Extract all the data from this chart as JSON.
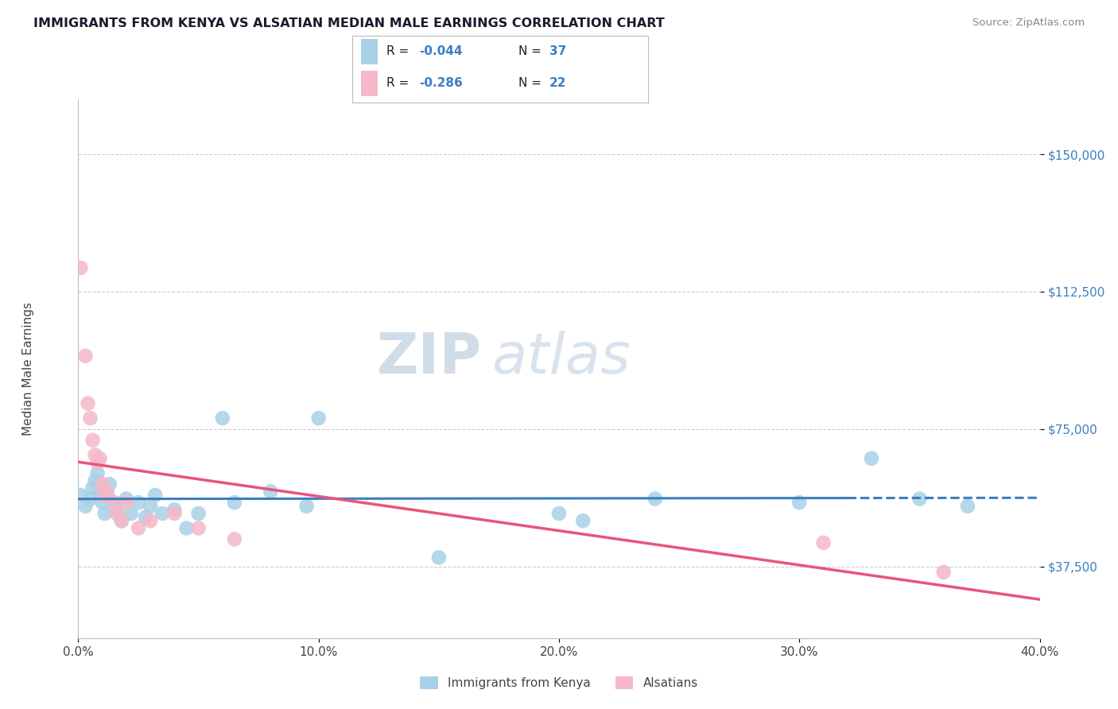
{
  "title": "IMMIGRANTS FROM KENYA VS ALSATIAN MEDIAN MALE EARNINGS CORRELATION CHART",
  "source": "Source: ZipAtlas.com",
  "ylabel": "Median Male Earnings",
  "xlim": [
    0.0,
    0.4
  ],
  "ylim": [
    18000,
    165000
  ],
  "yticks": [
    37500,
    75000,
    112500,
    150000
  ],
  "xticks": [
    0.0,
    0.1,
    0.2,
    0.3,
    0.4
  ],
  "xtick_labels": [
    "0.0%",
    "10.0%",
    "20.0%",
    "30.0%",
    "40.0%"
  ],
  "ytick_labels": [
    "$37,500",
    "$75,000",
    "$112,500",
    "$150,000"
  ],
  "color_blue": "#a8d1e7",
  "color_pink": "#f4b8c8",
  "color_trendline_blue": "#3a7fc1",
  "color_trendline_pink": "#e8557a",
  "watermark_zip": "ZIP",
  "watermark_atlas": "atlas",
  "background_color": "#ffffff",
  "grid_color": "#cccccc",
  "kenya_x": [
    0.001,
    0.003,
    0.005,
    0.006,
    0.007,
    0.008,
    0.009,
    0.01,
    0.011,
    0.012,
    0.013,
    0.015,
    0.016,
    0.018,
    0.02,
    0.022,
    0.025,
    0.028,
    0.03,
    0.032,
    0.035,
    0.04,
    0.045,
    0.05,
    0.06,
    0.065,
    0.08,
    0.095,
    0.1,
    0.15,
    0.2,
    0.21,
    0.24,
    0.3,
    0.33,
    0.35,
    0.37
  ],
  "kenya_y": [
    57000,
    54000,
    56000,
    59000,
    61000,
    63000,
    58000,
    55000,
    52000,
    57000,
    60000,
    55000,
    53000,
    50000,
    56000,
    52000,
    55000,
    51000,
    54000,
    57000,
    52000,
    53000,
    48000,
    52000,
    78000,
    55000,
    58000,
    54000,
    78000,
    40000,
    52000,
    50000,
    56000,
    55000,
    67000,
    56000,
    54000
  ],
  "alsatian_x": [
    0.001,
    0.003,
    0.004,
    0.005,
    0.006,
    0.007,
    0.008,
    0.009,
    0.01,
    0.011,
    0.012,
    0.015,
    0.016,
    0.018,
    0.02,
    0.025,
    0.03,
    0.04,
    0.05,
    0.065,
    0.31,
    0.36
  ],
  "alsatian_y": [
    119000,
    95000,
    82000,
    78000,
    72000,
    68000,
    66000,
    67000,
    60000,
    57000,
    58000,
    55000,
    52000,
    50000,
    55000,
    48000,
    50000,
    52000,
    48000,
    45000,
    44000,
    36000
  ]
}
